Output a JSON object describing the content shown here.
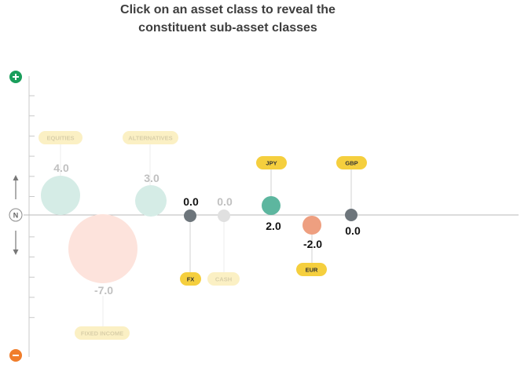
{
  "title": {
    "line1": "Click on an asset class to reveal the",
    "line2": "constituent sub-asset classes"
  },
  "scale": {
    "plus_icon": "+",
    "minus_icon": "−",
    "neutral_label": "N"
  },
  "colors": {
    "axis": "#b8b8b8",
    "plus": "#1a9e5b",
    "minus": "#f07d2b",
    "tag_active": "#f5cf3e",
    "tag_faded": "#fbf0c4"
  },
  "items": [
    {
      "id": "equities",
      "label": "EQUITIES",
      "value": "4.0",
      "faded": true,
      "color": "#d5ece6"
    },
    {
      "id": "fixed-income",
      "label": "FIXED INCOME",
      "value": "-7.0",
      "faded": true,
      "color": "#fde3dc"
    },
    {
      "id": "alternatives",
      "label": "ALTERNATIVES",
      "value": "3.0",
      "faded": true,
      "color": "#d5ece6"
    },
    {
      "id": "fx",
      "label": "FX",
      "value": "0.0",
      "faded": false,
      "color": "#6d757b"
    },
    {
      "id": "cash",
      "label": "CASH",
      "value": "0.0",
      "faded": true,
      "color": "#e0e0e0"
    },
    {
      "id": "jpy",
      "label": "JPY",
      "value": "2.0",
      "faded": false,
      "color": "#5db69f"
    },
    {
      "id": "eur",
      "label": "EUR",
      "value": "-2.0",
      "faded": false,
      "color": "#ee9f80"
    },
    {
      "id": "gbp",
      "label": "GBP",
      "value": "0.0",
      "faded": false,
      "color": "#6d757b"
    }
  ]
}
